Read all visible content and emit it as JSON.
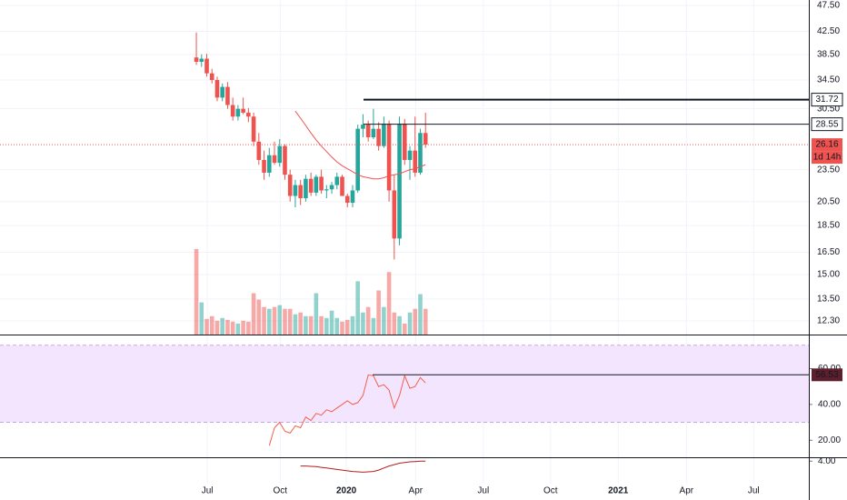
{
  "chart_data": [
    {
      "type": "candlestick",
      "x": [
        0,
        1,
        2,
        3,
        4,
        5,
        6,
        7,
        8,
        9,
        10,
        11,
        12,
        13,
        14,
        15,
        16,
        17,
        18,
        19,
        20,
        21,
        22,
        23,
        24,
        25,
        26,
        27,
        28,
        29,
        30,
        31,
        32,
        33,
        34,
        35,
        36,
        37,
        38,
        39,
        40,
        41,
        42,
        43,
        44
      ],
      "open": [
        38.0,
        37.3,
        37.8,
        35.5,
        34.5,
        32.0,
        33.5,
        31.0,
        29.5,
        30.5,
        30.0,
        29.5,
        26.5,
        24.5,
        23.2,
        25.0,
        24.2,
        26.0,
        23.0,
        21.0,
        22.0,
        20.8,
        22.6,
        21.3,
        22.8,
        21.5,
        21.6,
        22.0,
        22.8,
        21.0,
        20.4,
        21.5,
        28.0,
        28.5,
        27.0,
        28.0,
        26.0,
        28.6,
        21.5,
        17.5,
        28.6,
        24.5,
        25.5,
        23.2,
        27.5
      ],
      "high": [
        42.3,
        38.5,
        38.6,
        36.2,
        35.0,
        34.0,
        34.2,
        32.0,
        31.0,
        32.0,
        30.6,
        30.0,
        27.5,
        25.5,
        25.8,
        26.5,
        26.8,
        26.2,
        23.5,
        22.5,
        22.5,
        23.0,
        23.2,
        23.0,
        23.5,
        22.0,
        22.3,
        23.2,
        23.0,
        21.2,
        22.0,
        28.5,
        29.8,
        29.0,
        30.5,
        28.8,
        29.5,
        29.0,
        23.0,
        29.5,
        29.2,
        26.0,
        29.5,
        28.0,
        30.0
      ],
      "low": [
        36.8,
        36.5,
        35.0,
        34.0,
        31.5,
        31.5,
        30.5,
        29.0,
        29.0,
        29.8,
        28.8,
        26.0,
        24.0,
        22.5,
        22.8,
        24.0,
        23.8,
        22.5,
        20.5,
        20.0,
        20.2,
        20.5,
        21.0,
        21.0,
        21.2,
        20.8,
        21.2,
        21.6,
        21.0,
        20.0,
        20.0,
        21.3,
        27.0,
        26.5,
        26.8,
        25.5,
        25.8,
        20.5,
        16.0,
        17.0,
        24.0,
        22.5,
        22.8,
        23.0,
        25.8
      ],
      "close": [
        37.3,
        37.8,
        35.5,
        34.5,
        32.0,
        33.5,
        31.0,
        29.5,
        30.5,
        30.0,
        29.5,
        26.5,
        24.5,
        23.2,
        25.0,
        24.2,
        26.0,
        23.0,
        21.0,
        22.0,
        20.8,
        22.6,
        21.3,
        22.8,
        21.5,
        21.6,
        22.0,
        22.8,
        21.0,
        20.4,
        21.5,
        28.0,
        28.5,
        27.0,
        28.0,
        26.0,
        28.6,
        21.5,
        17.5,
        28.6,
        24.5,
        25.5,
        23.2,
        27.5,
        26.16
      ],
      "volume": [
        93,
        35,
        17,
        20,
        15,
        18,
        16,
        14,
        12,
        15,
        14,
        45,
        38,
        30,
        28,
        30,
        32,
        28,
        28,
        22,
        24,
        20,
        20,
        45,
        20,
        18,
        26,
        18,
        14,
        16,
        20,
        58,
        24,
        30,
        18,
        48,
        30,
        68,
        24,
        20,
        12,
        24,
        28,
        44,
        28
      ],
      "ma": [
        null,
        null,
        null,
        null,
        null,
        null,
        null,
        null,
        null,
        null,
        null,
        null,
        null,
        null,
        null,
        null,
        null,
        null,
        null,
        30.2,
        29.3,
        28.4,
        27.5,
        26.7,
        26.0,
        25.4,
        24.8,
        24.3,
        23.9,
        23.6,
        23.3,
        23.0,
        22.8,
        22.7,
        22.6,
        22.6,
        22.7,
        22.9,
        23.0,
        23.1,
        23.3,
        23.5,
        23.6,
        23.8,
        24.0
      ],
      "ma_color": "#ef5350",
      "up_color": "#26a69a",
      "down_color": "#ef5350",
      "levels": [
        31.72,
        28.55
      ],
      "countdown": "1d 14h",
      "log": true,
      "xlim": [
        -37.7,
        117.6
      ],
      "ylim": [
        11.6,
        48.6
      ],
      "yticks": [
        {
          "value": 12.3,
          "label": "12.30"
        },
        {
          "value": 13.5,
          "label": "13.50"
        },
        {
          "value": 15,
          "label": "15.00"
        },
        {
          "value": 16.5,
          "label": "16.50"
        },
        {
          "value": 18.5,
          "label": "18.50"
        },
        {
          "value": 20.5,
          "label": "20.50"
        },
        {
          "value": 23.5,
          "label": "23.50"
        },
        {
          "value": 30.5,
          "label": "30.50"
        },
        {
          "value": 34.5,
          "label": "34.50"
        },
        {
          "value": 38.5,
          "label": "38.50"
        },
        {
          "value": 42.5,
          "label": "42.50"
        },
        {
          "value": 47.5,
          "label": "47.50"
        }
      ]
    },
    {
      "type": "line",
      "x": [
        0,
        1,
        2,
        3,
        4,
        5,
        6,
        7,
        8,
        9,
        10,
        11,
        12,
        13,
        14,
        15,
        16,
        17,
        18,
        19,
        20,
        21,
        22,
        23,
        24,
        25,
        26,
        27,
        28,
        29,
        30,
        31,
        32,
        33,
        34,
        35,
        36,
        37,
        38,
        39,
        40,
        41,
        42,
        43,
        44
      ],
      "values": [
        null,
        null,
        null,
        null,
        null,
        null,
        null,
        null,
        null,
        null,
        null,
        null,
        null,
        null,
        17,
        27,
        30,
        25,
        24,
        28,
        27,
        33,
        31,
        35,
        34,
        37,
        36,
        38,
        40,
        42,
        40,
        41,
        45,
        56.5,
        56,
        50,
        51,
        48,
        38,
        45,
        56,
        49,
        50,
        55,
        52
      ],
      "color": "#f0604d",
      "band": [
        30,
        70
      ],
      "band_color": "#f3e5fd",
      "levels": [
        56.53
      ],
      "xlim": [
        -37.7,
        117.6
      ],
      "ylim": [
        10.5,
        78
      ],
      "yticks": [
        {
          "value": 20,
          "label": "20.00"
        },
        {
          "value": 40,
          "label": "40.00"
        },
        {
          "value": 60,
          "label": "60.00"
        }
      ]
    },
    {
      "type": "line",
      "x": [
        0,
        1,
        2,
        3,
        4,
        5,
        6,
        7,
        8,
        9,
        10,
        11,
        12,
        13,
        14,
        15,
        16,
        17,
        18,
        19,
        20,
        21,
        22,
        23,
        24,
        25,
        26,
        27,
        28,
        29,
        30,
        31,
        32,
        33,
        34,
        35,
        36,
        37,
        38,
        39,
        40,
        41,
        42,
        43,
        44
      ],
      "values": [
        null,
        null,
        null,
        null,
        null,
        null,
        null,
        null,
        null,
        null,
        null,
        null,
        null,
        null,
        null,
        null,
        null,
        null,
        null,
        null,
        2.6,
        2.6,
        2.5,
        2.4,
        2.2,
        2.0,
        1.8,
        1.6,
        1.4,
        1.2,
        1.0,
        0.9,
        0.8,
        0.9,
        1.0,
        1.4,
        2.0,
        2.6,
        3.0,
        3.4,
        3.6,
        3.8,
        3.9,
        4.0,
        4.0
      ],
      "color": "#b71c1c",
      "xlim": [
        -37.7,
        117.6
      ],
      "ylim": [
        -2,
        4.6
      ],
      "yticks": [
        {
          "value": 4,
          "label": "4.00"
        }
      ],
      "xticks": [
        {
          "value": 2.1,
          "label": "Jul"
        },
        {
          "value": 16.1,
          "label": "Oct"
        },
        {
          "value": 28.8,
          "label": "2020"
        },
        {
          "value": 42.1,
          "label": "Apr"
        },
        {
          "value": 55.1,
          "label": "Jul"
        },
        {
          "value": 68,
          "label": "Oct"
        },
        {
          "value": 81,
          "label": "2021"
        },
        {
          "value": 94.1,
          "label": "Apr"
        },
        {
          "value": 107,
          "label": "Jul"
        }
      ]
    }
  ]
}
